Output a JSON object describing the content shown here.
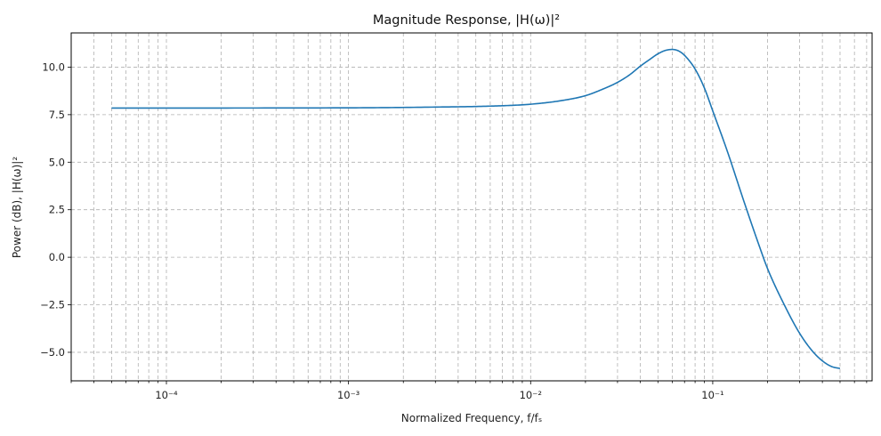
{
  "chart_data": {
    "type": "line",
    "title": "Magnitude Response, |H(ω)|²",
    "xlabel": "Normalized Frequency, f/fₛ",
    "ylabel": "Power (dB), |H(ω)|²",
    "xscale": "log",
    "xlim": [
      3e-05,
      0.75
    ],
    "ylim": [
      -6.5,
      11.8
    ],
    "grid": "both",
    "x_ticks": [
      {
        "value": 0.0001,
        "label": "10⁻⁴"
      },
      {
        "value": 0.001,
        "label": "10⁻³"
      },
      {
        "value": 0.01,
        "label": "10⁻²"
      },
      {
        "value": 0.1,
        "label": "10⁻¹"
      }
    ],
    "y_ticks": [
      {
        "value": 10.0,
        "label": "10.0"
      },
      {
        "value": 7.5,
        "label": "7.5"
      },
      {
        "value": 5.0,
        "label": "5.0"
      },
      {
        "value": 2.5,
        "label": "2.5"
      },
      {
        "value": 0.0,
        "label": "0.0"
      },
      {
        "value": -2.5,
        "label": "−2.5"
      },
      {
        "value": -5.0,
        "label": "−5.0"
      }
    ],
    "series": [
      {
        "name": "|H(ω)|²",
        "color": "#1f77b4",
        "x": [
          5e-05,
          0.0001,
          0.001,
          0.003,
          0.006,
          0.01,
          0.015,
          0.02,
          0.025,
          0.03,
          0.035,
          0.04,
          0.045,
          0.05,
          0.055,
          0.06,
          0.065,
          0.07,
          0.08,
          0.09,
          0.1,
          0.12,
          0.15,
          0.18,
          0.2,
          0.25,
          0.3,
          0.35,
          0.4,
          0.45,
          0.5
        ],
        "y": [
          7.85,
          7.85,
          7.86,
          7.9,
          7.95,
          8.05,
          8.25,
          8.5,
          8.85,
          9.2,
          9.6,
          10.05,
          10.4,
          10.7,
          10.88,
          10.93,
          10.85,
          10.62,
          9.9,
          8.9,
          7.7,
          5.6,
          2.8,
          0.6,
          -0.6,
          -2.6,
          -4.0,
          -4.9,
          -5.45,
          -5.75,
          -5.85
        ]
      }
    ]
  }
}
